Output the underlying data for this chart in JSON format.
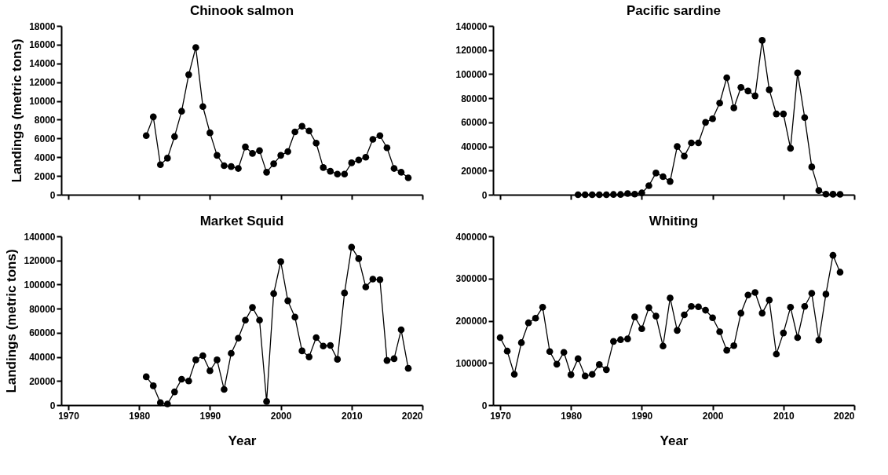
{
  "chart_data": [
    {
      "type": "line",
      "title": "Chinook salmon",
      "ylabel": "Landings (metric tons)",
      "tick_labels": "y",
      "grid": false,
      "marker": "circle",
      "line_style": "solid",
      "x": [
        1981,
        1982,
        1983,
        1984,
        1985,
        1986,
        1987,
        1988,
        1989,
        1990,
        1991,
        1992,
        1993,
        1994,
        1995,
        1996,
        1997,
        1998,
        1999,
        2000,
        2001,
        2002,
        2003,
        2004,
        2005,
        2006,
        2007,
        2008,
        2009,
        2010,
        2011,
        2012,
        2013,
        2014,
        2015,
        2016,
        2017,
        2018
      ],
      "series": [
        {
          "color": "#000000",
          "values": [
            6300,
            8300,
            3200,
            3900,
            6200,
            8900,
            12800,
            15700,
            9400,
            6600,
            4200,
            3100,
            3000,
            2800,
            5100,
            4400,
            4700,
            2400,
            3300,
            4200,
            4600,
            6700,
            7300,
            6800,
            5500,
            2900,
            2500,
            2200,
            2200,
            3400,
            3700,
            4000,
            5900,
            6300,
            5000,
            2800,
            2400,
            1800
          ]
        }
      ],
      "xlim": [
        1969,
        2020
      ],
      "xticks": [
        1970,
        1980,
        1990,
        2000,
        2010,
        2020
      ],
      "ylim": [
        0,
        18000
      ],
      "yticks": [
        0,
        2000,
        4000,
        6000,
        8000,
        10000,
        12000,
        14000,
        16000,
        18000
      ]
    },
    {
      "type": "line",
      "title": "Pacific sardine",
      "tick_labels": "y",
      "grid": false,
      "marker": "circle",
      "line_style": "solid",
      "x": [
        1981,
        1982,
        1983,
        1984,
        1985,
        1986,
        1987,
        1988,
        1989,
        1990,
        1991,
        1992,
        1993,
        1994,
        1995,
        1996,
        1997,
        1998,
        1999,
        2000,
        2001,
        2002,
        2003,
        2004,
        2005,
        2006,
        2007,
        2008,
        2009,
        2010,
        2011,
        2012,
        2013,
        2014,
        2015,
        2016,
        2017,
        2018
      ],
      "series": [
        {
          "color": "#000000",
          "values": [
            0,
            0,
            0,
            0,
            0,
            200,
            200,
            1000,
            500,
            1500,
            7500,
            18000,
            15000,
            11000,
            40000,
            32000,
            43000,
            43000,
            60000,
            63000,
            76000,
            97000,
            72000,
            89000,
            86000,
            82000,
            128000,
            87000,
            67000,
            67000,
            38500,
            101000,
            64000,
            23000,
            3500,
            500,
            400,
            300
          ]
        }
      ],
      "xlim": [
        1969,
        2020
      ],
      "xticks": [
        1970,
        1980,
        1990,
        2000,
        2010,
        2020
      ],
      "ylim": [
        0,
        140000
      ],
      "yticks": [
        0,
        20000,
        40000,
        60000,
        80000,
        100000,
        120000,
        140000
      ]
    },
    {
      "type": "line",
      "title": "Market Squid",
      "xlabel": "Year",
      "ylabel": "Landings (metric tons)",
      "grid": false,
      "marker": "circle",
      "line_style": "solid",
      "x": [
        1981,
        1982,
        1983,
        1984,
        1985,
        1986,
        1987,
        1988,
        1989,
        1990,
        1991,
        1992,
        1993,
        1994,
        1995,
        1996,
        1997,
        1998,
        1999,
        2000,
        2001,
        2002,
        2003,
        2004,
        2005,
        2006,
        2007,
        2008,
        2009,
        2010,
        2011,
        2012,
        2013,
        2014,
        2015,
        2016,
        2017,
        2018
      ],
      "series": [
        {
          "color": "#000000",
          "values": [
            23500,
            16000,
            2000,
            1000,
            11000,
            21500,
            20000,
            37500,
            41000,
            28500,
            37500,
            13000,
            43000,
            55500,
            70500,
            81000,
            70500,
            3000,
            92500,
            119000,
            86500,
            73000,
            45000,
            40000,
            56000,
            49000,
            49500,
            38000,
            93000,
            131000,
            121500,
            98000,
            104500,
            104000,
            37000,
            38500,
            62500,
            30500
          ]
        }
      ],
      "xlim": [
        1969,
        2020
      ],
      "xticks": [
        1970,
        1980,
        1990,
        2000,
        2010,
        2020
      ],
      "ylim": [
        0,
        140000
      ],
      "yticks": [
        0,
        20000,
        40000,
        60000,
        80000,
        100000,
        120000,
        140000
      ]
    },
    {
      "type": "line",
      "title": "Whiting",
      "xlabel": "Year",
      "grid": false,
      "marker": "circle",
      "line_style": "solid",
      "x": [
        1970,
        1971,
        1972,
        1973,
        1974,
        1975,
        1976,
        1977,
        1978,
        1979,
        1980,
        1981,
        1982,
        1983,
        1984,
        1985,
        1986,
        1987,
        1988,
        1989,
        1990,
        1991,
        1992,
        1993,
        1994,
        1995,
        1996,
        1997,
        1998,
        1999,
        2000,
        2001,
        2002,
        2003,
        2004,
        2005,
        2006,
        2007,
        2008,
        2009,
        2010,
        2011,
        2012,
        2013,
        2014,
        2015,
        2016,
        2017,
        2018
      ],
      "series": [
        {
          "color": "#000000",
          "values": [
            160000,
            128000,
            73000,
            148000,
            195000,
            206000,
            232000,
            127000,
            97000,
            125000,
            72000,
            110000,
            69000,
            73000,
            96000,
            84000,
            151000,
            155000,
            157000,
            209000,
            181000,
            231000,
            211000,
            140000,
            254000,
            177000,
            214000,
            234000,
            233000,
            225000,
            207000,
            174000,
            130000,
            141000,
            218000,
            261000,
            267000,
            218000,
            249000,
            121000,
            171000,
            232000,
            160000,
            234000,
            265000,
            154000,
            263000,
            355000,
            315000
          ]
        }
      ],
      "xlim": [
        1969,
        2020
      ],
      "xticks": [
        1970,
        1980,
        1990,
        2000,
        2010,
        2020
      ],
      "ylim": [
        0,
        400000
      ],
      "yticks": [
        0,
        100000,
        200000,
        300000,
        400000
      ]
    }
  ]
}
